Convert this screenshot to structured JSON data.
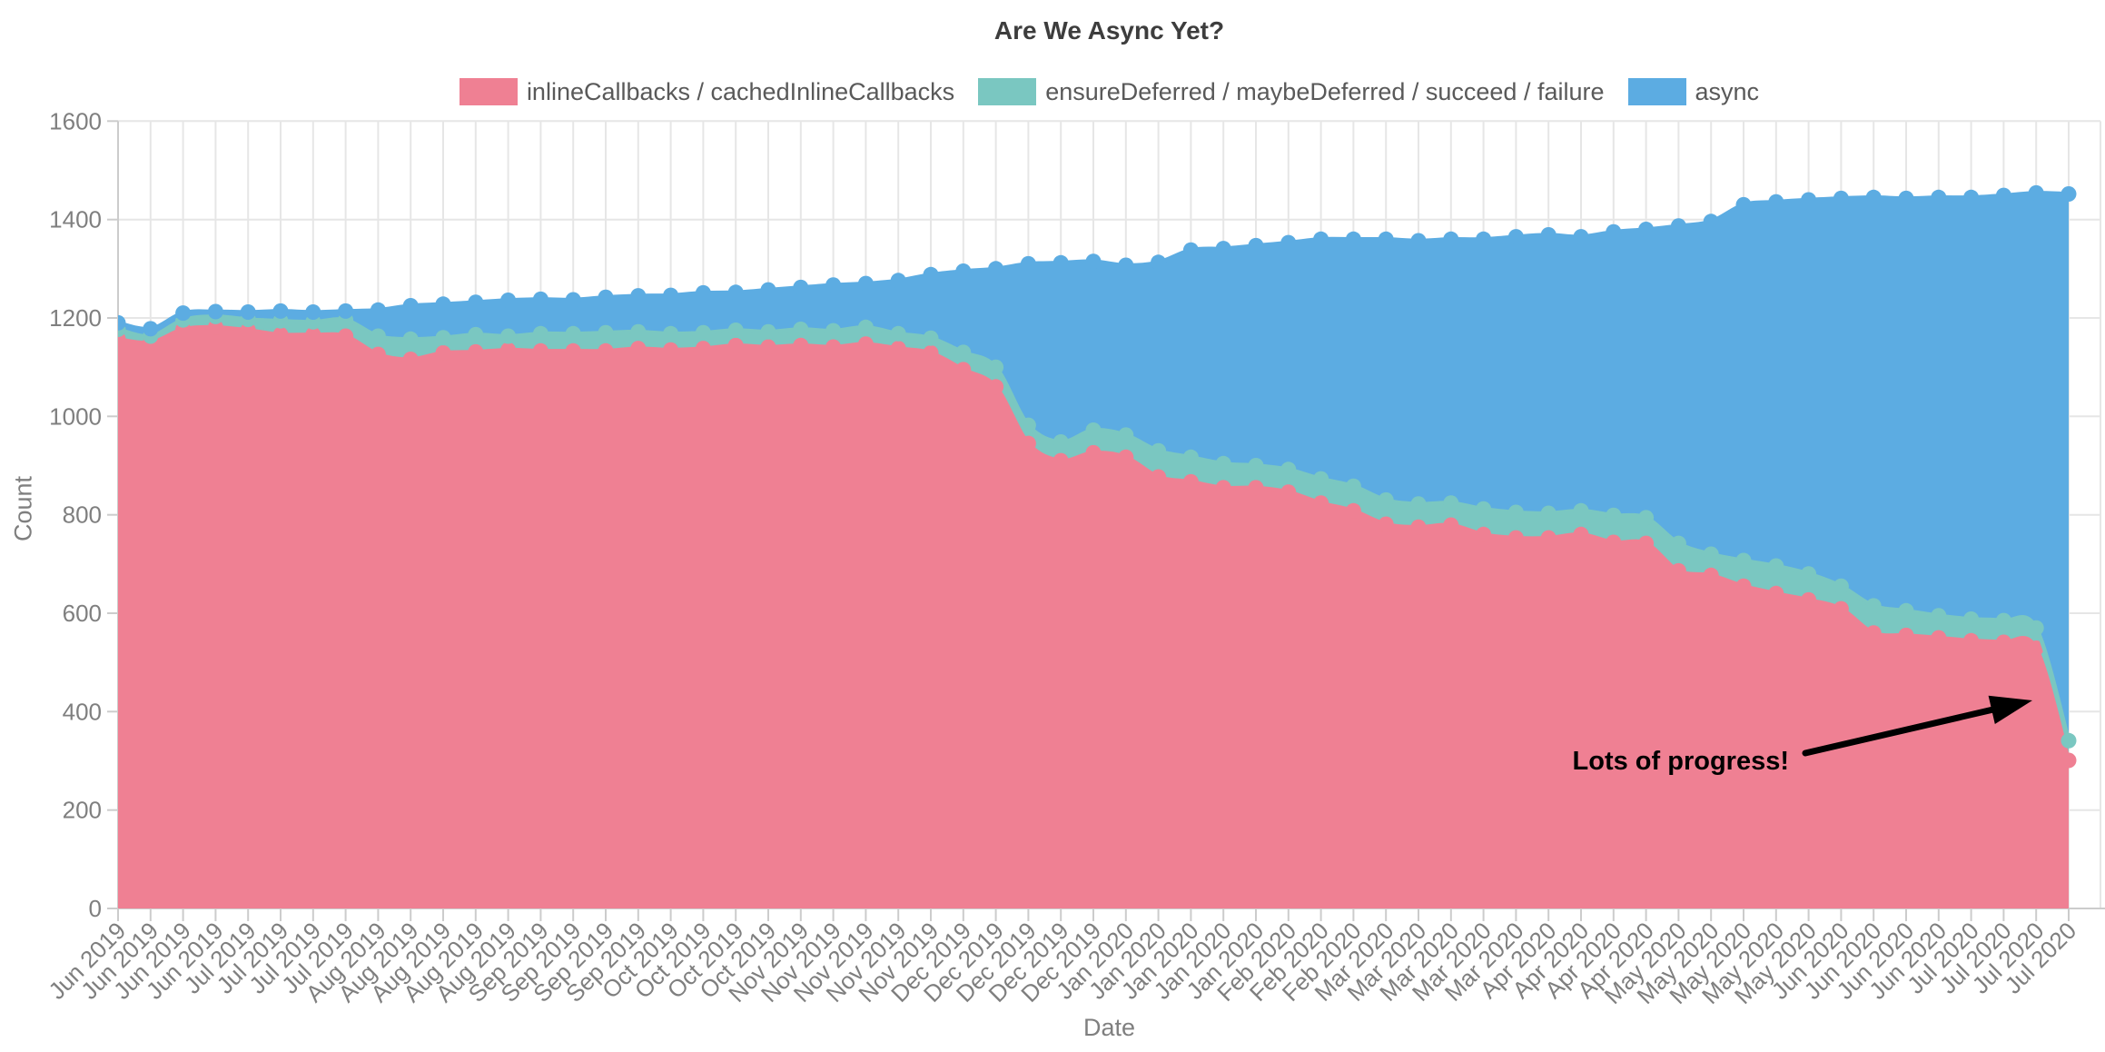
{
  "page": {
    "background": "#ffffff"
  },
  "chart_data": {
    "type": "area",
    "stacked": true,
    "line_shape": "spline",
    "markers": true,
    "title": "Are We Async Yet?",
    "xlabel": "Date",
    "ylabel": "Count",
    "ylim": [
      0,
      1600
    ],
    "ytick_step": 200,
    "grid": true,
    "legend_position": "top-center",
    "colors": {
      "grid": "#e6e6e6",
      "axis_line": "#cccccc",
      "tick_text": "#7f7f7f",
      "title_text": "#3d3d3d",
      "legend_text": "#595959",
      "annotation": "#000000",
      "background": "#ffffff"
    },
    "categories": [
      "Jun 2019",
      "Jun 2019",
      "Jun 2019",
      "Jun 2019",
      "Jul 2019",
      "Jul 2019",
      "Jul 2019",
      "Jul 2019",
      "Aug 2019",
      "Aug 2019",
      "Aug 2019",
      "Aug 2019",
      "Aug 2019",
      "Sep 2019",
      "Sep 2019",
      "Sep 2019",
      "Sep 2019",
      "Oct 2019",
      "Oct 2019",
      "Oct 2019",
      "Oct 2019",
      "Nov 2019",
      "Nov 2019",
      "Nov 2019",
      "Nov 2019",
      "Nov 2019",
      "Dec 2019",
      "Dec 2019",
      "Dec 2019",
      "Dec 2019",
      "Dec 2019",
      "Jan 2020",
      "Jan 2020",
      "Jan 2020",
      "Jan 2020",
      "Jan 2020",
      "Feb 2020",
      "Feb 2020",
      "Feb 2020",
      "Mar 2020",
      "Mar 2020",
      "Mar 2020",
      "Mar 2020",
      "Mar 2020",
      "Apr 2020",
      "Apr 2020",
      "Apr 2020",
      "Apr 2020",
      "May 2020",
      "May 2020",
      "May 2020",
      "May 2020",
      "May 2020",
      "Jun 2020",
      "Jun 2020",
      "Jun 2020",
      "Jun 2020",
      "Jul 2020",
      "Jul 2020",
      "Jul 2020",
      "Jul 2020"
    ],
    "series": [
      {
        "name": "inlineCallbacks / cachedInlineCallbacks",
        "color": "#EF8093",
        "values": [
          1157,
          1150,
          1177,
          1181,
          1175,
          1166,
          1166,
          1163,
          1126,
          1116,
          1129,
          1131,
          1135,
          1133,
          1133,
          1133,
          1138,
          1135,
          1138,
          1144,
          1141,
          1144,
          1141,
          1147,
          1138,
          1129,
          1095,
          1060,
          945,
          910,
          926,
          917,
          877,
          867,
          855,
          855,
          846,
          824,
          808,
          781,
          775,
          779,
          760,
          753,
          753,
          760,
          744,
          742,
          686,
          677,
          655,
          640,
          627,
          609,
          560,
          555,
          550,
          544,
          541,
          529,
          301
        ]
      },
      {
        "name": "ensureDeferred / maybeDeferred / succeed / failure",
        "color": "#7AC7C1",
        "values": [
          20,
          13,
          19,
          22,
          22,
          28,
          26,
          33,
          37,
          41,
          31,
          35,
          28,
          35,
          35,
          37,
          34,
          33,
          32,
          31,
          31,
          33,
          33,
          34,
          30,
          30,
          35,
          40,
          37,
          38,
          46,
          45,
          53,
          50,
          49,
          45,
          46,
          49,
          50,
          49,
          47,
          45,
          52,
          52,
          50,
          48,
          55,
          52,
          56,
          43,
          52,
          56,
          53,
          46,
          55,
          50,
          45,
          44,
          44,
          41,
          40
        ]
      },
      {
        "name": "async",
        "color": "#5CACE2",
        "values": [
          13,
          15,
          14,
          10,
          15,
          20,
          20,
          18,
          53,
          68,
          68,
          66,
          73,
          70,
          69,
          72,
          73,
          78,
          81,
          77,
          85,
          85,
          93,
          89,
          108,
          129,
          165,
          200,
          328,
          364,
          343,
          345,
          383,
          421,
          437,
          447,
          461,
          487,
          502,
          530,
          535,
          536,
          548,
          560,
          566,
          557,
          576,
          586,
          645,
          676,
          723,
          740,
          760,
          788,
          830,
          838,
          850,
          857,
          864,
          884,
          1111
        ]
      }
    ],
    "annotation": {
      "text": "Lots of progress!",
      "text_anchor": [
        1970,
        847
      ],
      "arrow_tail": [
        1988,
        829
      ],
      "arrow_tip": [
        2238,
        771
      ],
      "font_size": 29,
      "color": "#000000"
    }
  }
}
